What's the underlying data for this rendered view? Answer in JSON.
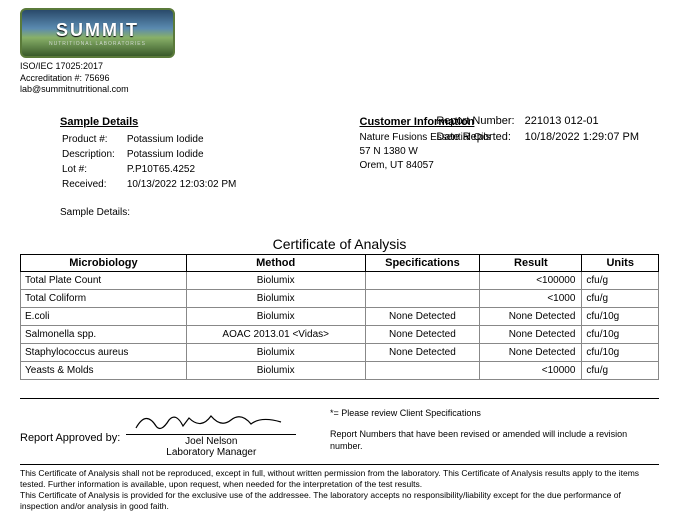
{
  "logo": {
    "name": "SUMMIT",
    "subtitle": "NUTRITIONAL LABORATORIES"
  },
  "accreditation": {
    "line1": "ISO/IEC 17025:2017",
    "line2": "Accreditation #: 75696",
    "line3": "lab@summitnutritional.com"
  },
  "report": {
    "number_label": "Report Number:",
    "number_value": "221013 012-01",
    "date_label": "Date Reported:",
    "date_value": "10/18/2022 1:29:07 PM"
  },
  "sample": {
    "heading": "Sample Details",
    "product_label": "Product #:",
    "product_value": "Potassium Iodide",
    "desc_label": "Description:",
    "desc_value": "Potassium Iodide",
    "lot_label": "Lot #:",
    "lot_value": "P.P10T65.4252",
    "received_label": "Received:",
    "received_value": "10/13/2022 12:03:02 PM",
    "details_label": "Sample Details:"
  },
  "customer": {
    "heading": "Customer Information",
    "line1": "Nature Fusions Essential Oils",
    "line2": "57 N 1380 W",
    "line3": "Orem, UT 84057"
  },
  "cert_title": "Certificate of Analysis",
  "table": {
    "headers": {
      "micro": "Microbiology",
      "method": "Method",
      "spec": "Specifications",
      "result": "Result",
      "units": "Units"
    },
    "rows": [
      {
        "micro": "Total Plate Count",
        "method": "Biolumix",
        "spec": "",
        "result": "<100000",
        "units": "cfu/g"
      },
      {
        "micro": "Total Coliform",
        "method": "Biolumix",
        "spec": "",
        "result": "<1000",
        "units": "cfu/g"
      },
      {
        "micro": "E.coli",
        "method": "Biolumix",
        "spec": "None Detected",
        "result": "None Detected",
        "units": "cfu/10g"
      },
      {
        "micro": "Salmonella spp.",
        "method": "AOAC 2013.01 <Vidas>",
        "spec": "None Detected",
        "result": "None Detected",
        "units": "cfu/10g"
      },
      {
        "micro": "Staphylococcus aureus",
        "method": "Biolumix",
        "spec": "None Detected",
        "result": "None Detected",
        "units": "cfu/10g"
      },
      {
        "micro": "Yeasts & Molds",
        "method": "Biolumix",
        "spec": "",
        "result": "<10000",
        "units": "cfu/g"
      }
    ],
    "col_widths": {
      "micro": "26%",
      "method": "28%",
      "spec": "18%",
      "result": "16%",
      "units": "12%"
    }
  },
  "approval": {
    "label": "Report Approved by:",
    "name": "Joel Nelson",
    "title": "Laboratory Manager",
    "note1": "*= Please review Client Specifications",
    "note2": "Report Numbers that have been revised or amended will include a revision number."
  },
  "disclaimer": {
    "line1": "This Certificate of Analysis shall not be reproduced, except in full, without written permission from the laboratory. This Certificate of Analysis results apply to the items tested. Further information is available, upon request, when needed for the interpretation of the test results.",
    "line2": "This Certificate of Analysis is provided for the exclusive use of the addressee. The laboratory accepts no responsibility/liability except for the due performance of inspection and/or analysis in good faith."
  },
  "colors": {
    "text": "#000000",
    "border": "#000000",
    "cell_border": "#888888",
    "bg": "#ffffff"
  }
}
